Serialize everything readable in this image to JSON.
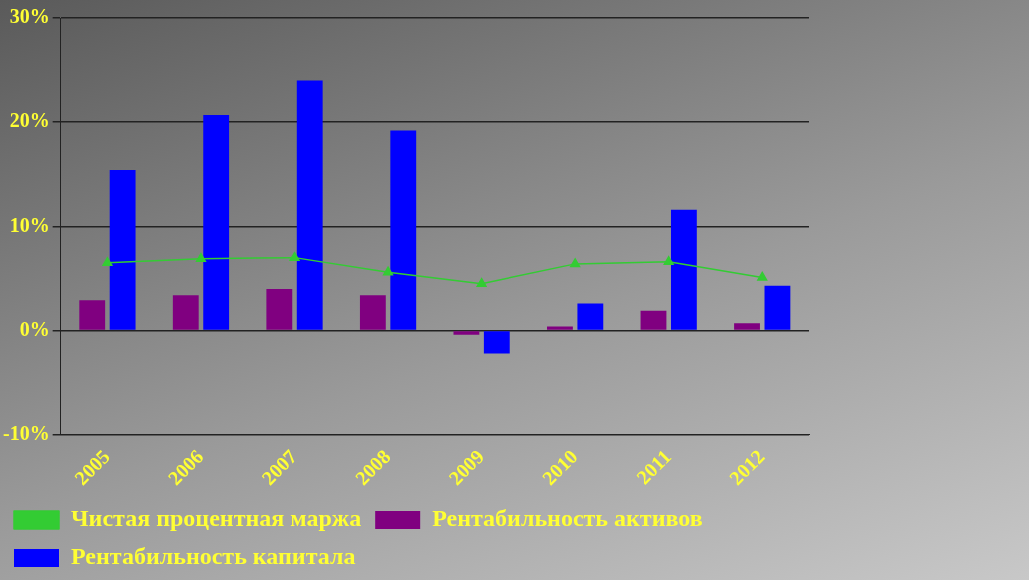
{
  "chart_data": {
    "type": "bar",
    "categories": [
      "2005",
      "2006",
      "2007",
      "2008",
      "2009",
      "2010",
      "2011",
      "2012"
    ],
    "series": [
      {
        "name": "Рентабильность активов",
        "color": "#800080",
        "values": [
          2.9,
          3.4,
          4.0,
          3.4,
          -0.4,
          0.4,
          1.9,
          0.7
        ]
      },
      {
        "name": "Рентабильность капитала",
        "color": "#0000ff",
        "values": [
          15.4,
          20.7,
          24.0,
          19.2,
          -2.2,
          2.6,
          11.6,
          4.3
        ]
      },
      {
        "name": "Чистая процентная маржа",
        "type": "line",
        "color": "#33cc33",
        "values": [
          6.5,
          6.9,
          7.0,
          5.6,
          4.5,
          6.4,
          6.6,
          5.1
        ]
      }
    ],
    "ylim": [
      -10,
      30
    ],
    "yticks": [
      {
        "value": -10,
        "label": "-10%"
      },
      {
        "value": 0,
        "label": "0%"
      },
      {
        "value": 10,
        "label": "10%"
      },
      {
        "value": 20,
        "label": "20%"
      },
      {
        "value": 30,
        "label": "30%"
      }
    ],
    "grid": "y",
    "legend": "bottom",
    "marker": "triangle",
    "line_style": "solid"
  }
}
